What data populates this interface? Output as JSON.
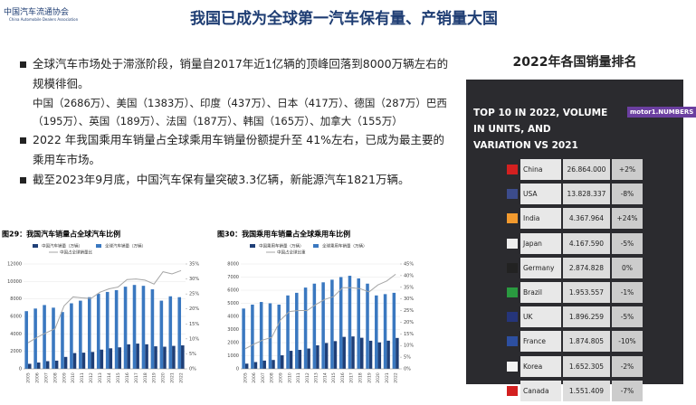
{
  "header": {
    "logo": "中国汽车流通协会",
    "logo_en": "China Automobile Dealers Association",
    "title": "我国已成为全球第一汽车保有量、产销量大国"
  },
  "bullets": [
    {
      "text": "全球汽车市场处于滞涨阶段，销量自2017年近1亿辆的顶峰回落到8000万辆左右的规模徘徊。",
      "detail": "中国（2686万）、美国（1383万）、印度（437万）、日本（417万）、德国（287万）巴西（195万）、英国（189万）、法国（187万）、韩国（165万）、加拿大（155万）"
    },
    {
      "text": "2022 年我国乘用车销量占全球乘用车销量份额提升至 41%左右，已成为最主要的乘用车市场。"
    },
    {
      "text": "截至2023年9月底，中国汽车保有量突破3.3亿辆，新能源汽车1821万辆。"
    }
  ],
  "ranking": {
    "heading": "2022年各国销量排名",
    "title": "TOP 10 IN 2022, VOLUME IN UNITS, AND VARIATION VS 2021",
    "brand": "motor1.NUMBERS",
    "rows": [
      [
        "China",
        "26.864.000",
        "+2%"
      ],
      [
        "USA",
        "13.828.337",
        "-8%"
      ],
      [
        "India",
        "4.367.964",
        "+24%"
      ],
      [
        "Japan",
        "4.167.590",
        "-5%"
      ],
      [
        "Germany",
        "2.874.828",
        "0%"
      ],
      [
        "Brazil",
        "1.953.557",
        "-1%"
      ],
      [
        "UK",
        "1.896.259",
        "-5%"
      ],
      [
        "France",
        "1.874.805",
        "-10%"
      ],
      [
        "Korea",
        "1.652.305",
        "-2%"
      ],
      [
        "Canada",
        "1.551.409",
        "-7%"
      ]
    ]
  },
  "chart_data": [
    {
      "type": "bar",
      "title": "图29：我国汽车销量占全球汽车比例",
      "categories": [
        "2005",
        "2006",
        "2007",
        "2008",
        "2009",
        "2010",
        "2011",
        "2012",
        "2013",
        "2014",
        "2015",
        "2016",
        "2017",
        "2018",
        "2019",
        "2020",
        "2021",
        "2022"
      ],
      "series": [
        {
          "name": "中国汽车销量（万辆）",
          "color": "#1f3f77",
          "values": [
            576,
            722,
            879,
            938,
            1364,
            1806,
            1851,
            1931,
            2198,
            2349,
            2460,
            2803,
            2888,
            2808,
            2577,
            2531,
            2628,
            2686
          ]
        },
        {
          "name": "全球汽车销量（万辆）",
          "color": "#3a78c0",
          "values": [
            6600,
            6900,
            7300,
            7000,
            6500,
            7500,
            7800,
            8200,
            8600,
            8800,
            9000,
            9400,
            9600,
            9500,
            9100,
            7800,
            8300,
            8200
          ]
        },
        {
          "name": "中国占全球销量比",
          "color": "#a6a6a6",
          "axis": "y2",
          "values": [
            8.7,
            10.5,
            12,
            13.4,
            21,
            24,
            23.7,
            23.5,
            25.6,
            26.7,
            27.3,
            29.8,
            30,
            29.6,
            28.3,
            32.4,
            31.7,
            32.8
          ]
        }
      ],
      "ylim": [
        0,
        12000
      ],
      "yticks": [
        0,
        2000,
        4000,
        6000,
        8000,
        10000,
        12000
      ],
      "y2lim": [
        0,
        35
      ],
      "y2ticks": [
        {
          "value": 0,
          "label": "0%"
        },
        {
          "value": 5,
          "label": "5%"
        },
        {
          "value": 10,
          "label": "10%"
        },
        {
          "value": 15,
          "label": "15%"
        },
        {
          "value": 20,
          "label": "20%"
        },
        {
          "value": 25,
          "label": "25%"
        },
        {
          "value": 30,
          "label": "30%"
        },
        {
          "value": 35,
          "label": "35%"
        }
      ]
    },
    {
      "type": "bar",
      "title": "图30：我国乘用车销量占全球乘用车比例",
      "categories": [
        "2005",
        "2006",
        "2007",
        "2008",
        "2009",
        "2010",
        "2011",
        "2012",
        "2013",
        "2014",
        "2015",
        "2016",
        "2017",
        "2018",
        "2019",
        "2020",
        "2021",
        "2022"
      ],
      "series": [
        {
          "name": "中国乘用车销量（万辆）",
          "color": "#1f3f77",
          "values": [
            397,
            518,
            630,
            676,
            1033,
            1376,
            1447,
            1550,
            1793,
            1970,
            2115,
            2438,
            2472,
            2371,
            2144,
            2018,
            2148,
            2356
          ]
        },
        {
          "name": "全球乘用车销量（万辆）",
          "color": "#3a78c0",
          "values": [
            4600,
            4900,
            5100,
            5000,
            4900,
            5600,
            5800,
            6200,
            6500,
            6600,
            6800,
            7000,
            7100,
            6900,
            6500,
            5600,
            5700,
            5800
          ]
        },
        {
          "name": "中国占全球比重",
          "color": "#a6a6a6",
          "axis": "y2",
          "values": [
            8.6,
            10.6,
            12.4,
            13.5,
            21,
            24.6,
            25,
            25,
            27.6,
            29.8,
            31,
            34.8,
            34.8,
            34.4,
            33,
            36,
            37.7,
            40.6
          ]
        }
      ],
      "ylim": [
        0,
        8000
      ],
      "yticks": [
        0,
        1000,
        2000,
        3000,
        4000,
        5000,
        6000,
        7000,
        8000
      ],
      "y2lim": [
        0,
        45
      ],
      "y2ticks": [
        {
          "value": 0,
          "label": "0%"
        },
        {
          "value": 5,
          "label": "5%"
        },
        {
          "value": 10,
          "label": "10%"
        },
        {
          "value": 15,
          "label": "15%"
        },
        {
          "value": 20,
          "label": "20%"
        },
        {
          "value": 25,
          "label": "25%"
        },
        {
          "value": 30,
          "label": "30%"
        },
        {
          "value": 35,
          "label": "35%"
        },
        {
          "value": 40,
          "label": "40%"
        },
        {
          "value": 45,
          "label": "45%"
        }
      ]
    }
  ]
}
